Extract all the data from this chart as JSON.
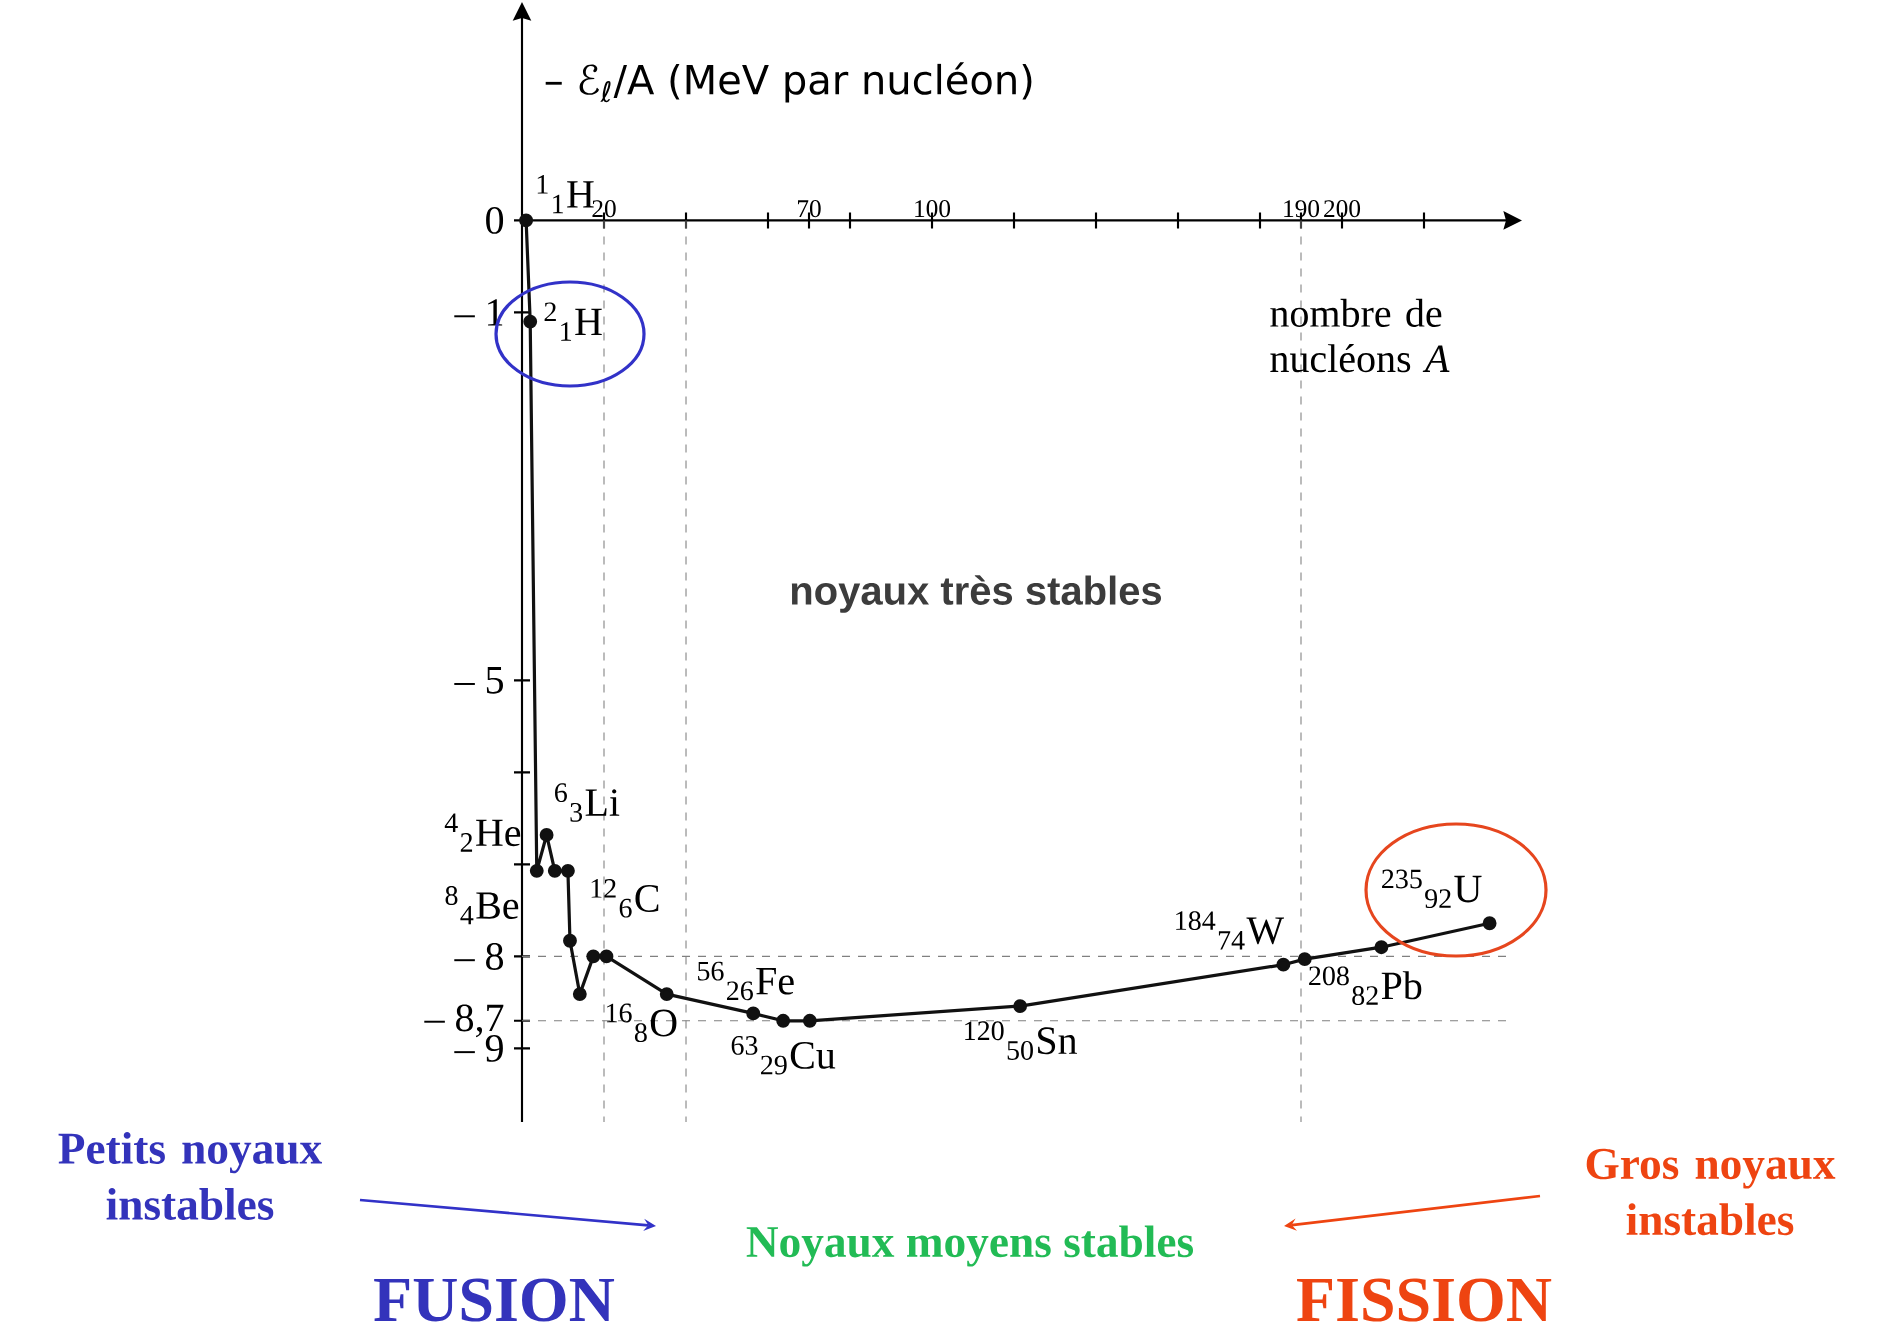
{
  "chart_data": {
    "type": "line",
    "ylabel": "– ℰ$_{ℓ}$/A (MeV par nucléon)",
    "xlabel": "nombre de nucléons *A*",
    "x": [
      1,
      2,
      3.6,
      6.0,
      8.0,
      11.2,
      11.7,
      14.1,
      17.4,
      20.6,
      35.3,
      56.4,
      63.7,
      70.2,
      121.5,
      185.7,
      190.9,
      209.6,
      236
    ],
    "values": [
      0,
      -1.1,
      -7.07,
      -6.68,
      -7.07,
      -7.07,
      -7.83,
      -8.41,
      -8.0,
      -8.0,
      -8.41,
      -8.62,
      -8.7,
      -8.7,
      -8.54,
      -8.09,
      -8.03,
      -7.9,
      -7.64
    ],
    "color": "#111111",
    "marker": "circle",
    "line_style": "solid",
    "xlim": [
      0,
      240
    ],
    "ylim": [
      -9.8,
      2.2
    ],
    "xticks": [
      20,
      {
        "value": 40,
        "label": null
      },
      {
        "value": 60,
        "label": null
      },
      70,
      {
        "value": 80,
        "label": null
      },
      100,
      {
        "value": 120,
        "label": null
      },
      {
        "value": 140,
        "label": null
      },
      {
        "value": 160,
        "label": null
      },
      {
        "value": 180,
        "label": null
      },
      190,
      200,
      {
        "value": 220,
        "label": null
      }
    ],
    "yticks": [
      0,
      {
        "value": -1,
        "label": "– 1"
      },
      {
        "value": -5,
        "label": "– 5"
      },
      {
        "value": -6,
        "label": null
      },
      {
        "value": -7,
        "label": null
      },
      {
        "value": -8,
        "label": "– 8"
      },
      {
        "value": -8.7,
        "label": "– 8,7"
      },
      {
        "value": -9,
        "label": "– 9"
      }
    ],
    "ref_lines": [
      {
        "axis": "x",
        "value": 20,
        "line_style": "dashed"
      },
      {
        "axis": "x",
        "value": 40,
        "line_style": "dashed"
      },
      {
        "axis": "x",
        "value": 190,
        "line_style": "dashed"
      },
      {
        "axis": "y",
        "value": -8,
        "line_style": "dashed"
      },
      {
        "axis": "y",
        "value": -8.7,
        "line_style": "dashed"
      }
    ],
    "annotations": [
      {
        "text": "$^{1}$$_{1}$H",
        "x": 1,
        "y": 0
      },
      {
        "text": "$^{2}$$_{1}$H",
        "x": 2,
        "y": -1.1
      },
      {
        "text": "$^{4}$$_{2}$He",
        "x": 3.6,
        "y": -7.07
      },
      {
        "text": "$^{6}$$_{3}$Li",
        "x": 6.0,
        "y": -6.68
      },
      {
        "text": "$^{8}$$_{4}$Be",
        "x": 8.0,
        "y": -7.07
      },
      {
        "text": "$^{12}$$_{6}$C",
        "x": 11.7,
        "y": -7.83
      },
      {
        "text": "$^{16}$$_{8}$O",
        "x": 17.4,
        "y": -8.0
      },
      {
        "text": "$^{56}$$_{26}$Fe",
        "x": 56.4,
        "y": -8.62
      },
      {
        "text": "$^{63}$$_{29}$Cu",
        "x": 63.7,
        "y": -8.7
      },
      {
        "text": "$^{120}$$_{50}$Sn",
        "x": 121.5,
        "y": -8.54
      },
      {
        "text": "$^{184}$$_{74}$W",
        "x": 185.7,
        "y": -8.09
      },
      {
        "text": "$^{208}$$_{82}$Pb",
        "x": 209.6,
        "y": -7.9
      },
      {
        "text": "$^{235}$$_{92}$U",
        "x": 236,
        "y": -7.64
      },
      "noyaux très stables",
      "Petits noyaux instables",
      "Noyaux moyens stables",
      "Gros noyaux instables",
      "FUSION",
      "FISSION"
    ]
  }
}
